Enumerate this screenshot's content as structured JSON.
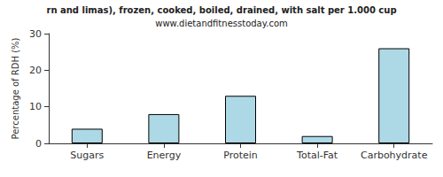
{
  "chart_data": {
    "type": "bar",
    "title": "rn and limas), frozen, cooked, boiled, drained, with salt per 1.000 cup",
    "subtitle": "www.dietandfitnesstoday.com",
    "y_label": "Percentage of RDH (%)",
    "categories": [
      "Sugars",
      "Energy",
      "Protein",
      "Total-Fat",
      "Carbohydrate"
    ],
    "values": [
      4,
      8,
      13,
      2,
      26
    ],
    "color": "#add8e6",
    "ylim": [
      0,
      30
    ],
    "yticks": [
      0,
      10,
      20,
      30
    ],
    "grid": false
  }
}
